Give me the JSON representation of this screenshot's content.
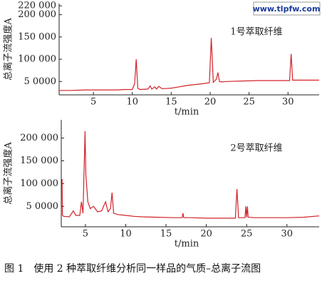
{
  "watermark": "www.tlpfw.com",
  "caption": "图 1　使用 2 种萃取纤维分析同一样品的气质–总离子流图",
  "chart_data": [
    {
      "type": "line",
      "annotation": "1号萃取纤维",
      "y_label": "总离子流强度A",
      "x_label": "t/min",
      "xlim": [
        0.6,
        34
      ],
      "xticks": [
        5,
        10,
        15,
        20,
        25,
        30
      ],
      "ylim": [
        20000,
        225000
      ],
      "yticks": [
        {
          "value": 220000,
          "label": "220 000"
        },
        {
          "value": 200000,
          "label": "200 000"
        },
        {
          "value": 150000,
          "label": "150 000"
        },
        {
          "value": 100000,
          "label": "100 000"
        },
        {
          "value": 50000,
          "label": "5 0000"
        }
      ],
      "x": [
        0.6,
        2,
        4,
        6,
        8,
        9,
        10,
        10.3,
        10.5,
        10.7,
        11,
        12,
        12.3,
        12.5,
        12.9,
        13.1,
        13.4,
        13.8,
        14,
        15,
        16,
        17,
        18,
        19,
        19.9,
        20.15,
        20.4,
        20.8,
        21,
        21.2,
        21.5,
        22,
        24,
        26,
        28,
        30,
        30.2,
        30.4,
        30.6,
        31,
        32,
        34
      ],
      "series": [
        {
          "color": "#d2232a",
          "values": [
            30000,
            30000,
            31000,
            31000,
            31000,
            32000,
            32000,
            45000,
            100000,
            35000,
            32000,
            33000,
            40000,
            33000,
            38000,
            33000,
            39000,
            34000,
            34000,
            35000,
            38000,
            41000,
            43000,
            45000,
            47000,
            148000,
            48000,
            55000,
            70000,
            50000,
            49000,
            50000,
            51000,
            52000,
            52000,
            52000,
            52000,
            112000,
            53000,
            53000,
            53000,
            53000
          ]
        }
      ]
    },
    {
      "type": "line",
      "annotation": "2号萃取纤维",
      "y_label": "总离子流强度A",
      "x_label": "t/min",
      "xlim": [
        2,
        34
      ],
      "xticks": [
        5,
        10,
        15,
        20,
        25,
        30
      ],
      "ylim": [
        5000,
        240000
      ],
      "yticks": [
        {
          "value": 200000,
          "label": "200 000"
        },
        {
          "value": 150000,
          "label": "150 000"
        },
        {
          "value": 100000,
          "label": "100 000"
        },
        {
          "value": 50000,
          "label": "5 0000"
        }
      ],
      "x": [
        2.1,
        2.15,
        2.3,
        3,
        3.5,
        3.8,
        4.3,
        4.5,
        4.7,
        4.95,
        5.05,
        5.3,
        5.6,
        6,
        6.5,
        7,
        7.5,
        7.8,
        8.1,
        8.3,
        8.5,
        9,
        10,
        11,
        12,
        14,
        16,
        17,
        17.1,
        17.2,
        18,
        20,
        22,
        23.6,
        23.8,
        24,
        24.8,
        24.9,
        25,
        25.1,
        25.2,
        26,
        28,
        30,
        32,
        34
      ],
      "series": [
        {
          "color": "#d2232a",
          "values": [
            110000,
            30000,
            28000,
            27000,
            40000,
            30000,
            30000,
            60000,
            35000,
            215000,
            120000,
            60000,
            45000,
            50000,
            38000,
            40000,
            60000,
            38000,
            45000,
            80000,
            35000,
            32000,
            30000,
            28000,
            27000,
            26000,
            25000,
            25000,
            35000,
            25000,
            25000,
            24000,
            24000,
            24000,
            88000,
            25000,
            25000,
            50000,
            26000,
            50000,
            26000,
            25000,
            25000,
            25000,
            26000,
            29000
          ]
        }
      ]
    }
  ]
}
